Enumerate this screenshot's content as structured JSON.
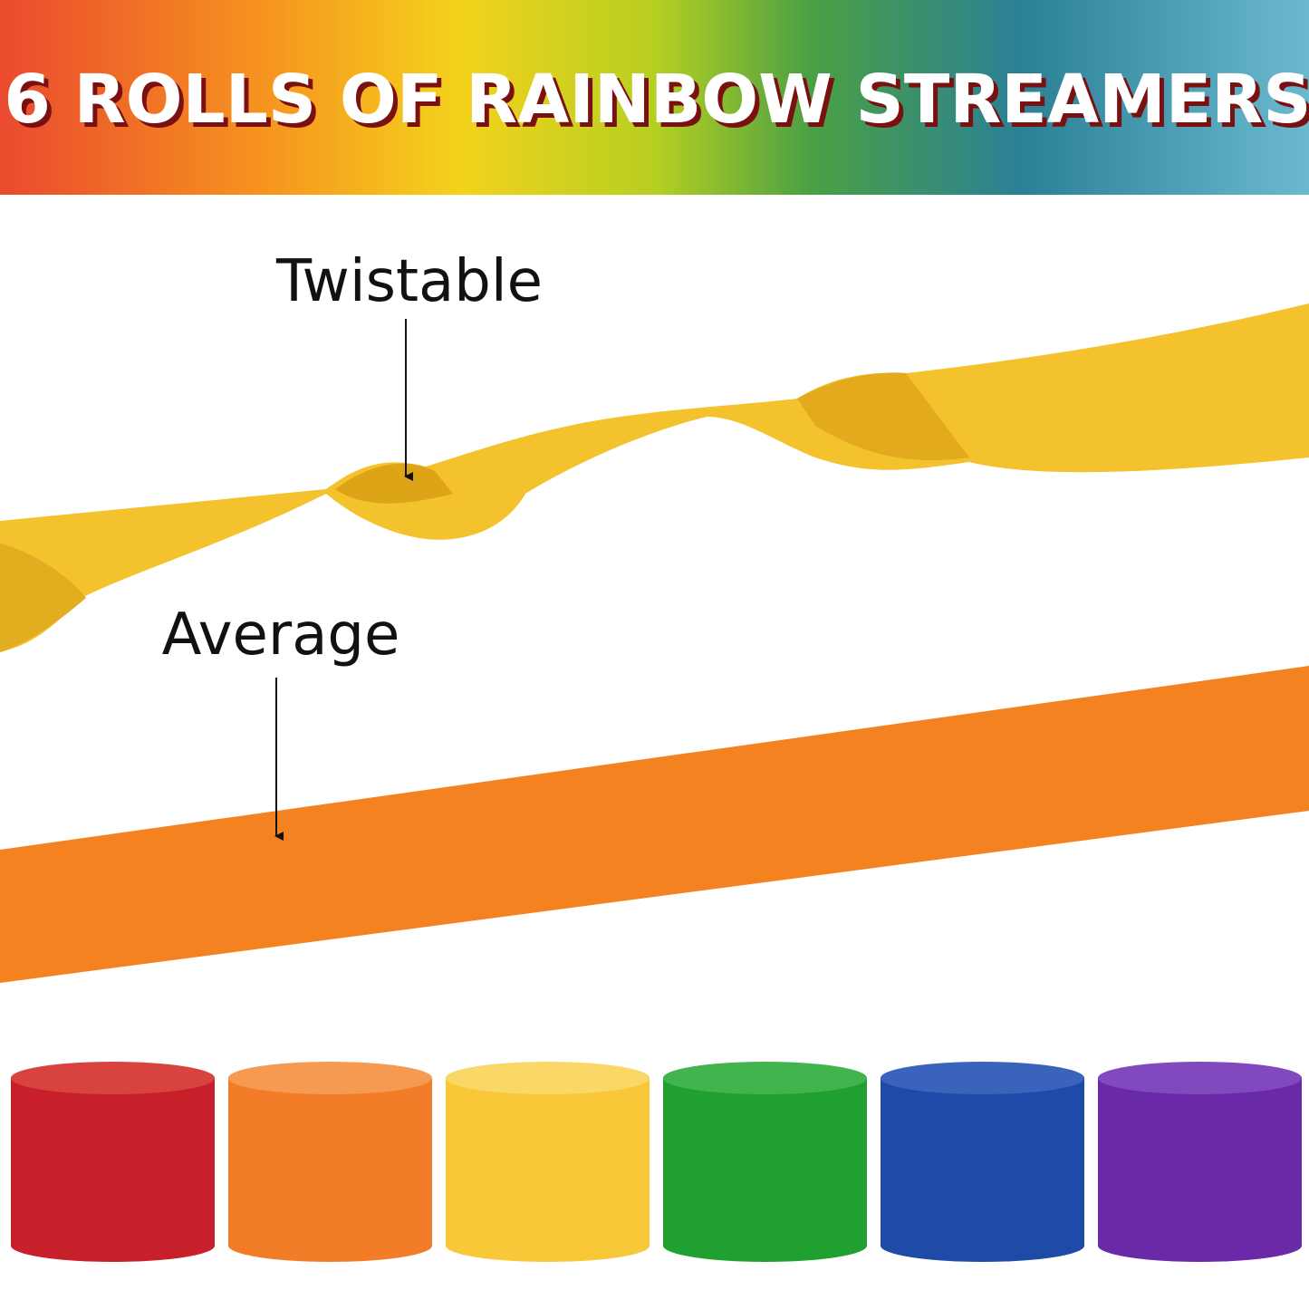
{
  "header": {
    "title": "6 ROLLS OF RAINBOW STREAMERS"
  },
  "labels": [
    "Twistable",
    "Average"
  ]
}
